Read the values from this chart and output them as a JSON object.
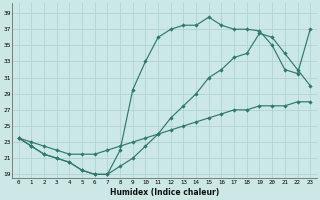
{
  "xlabel": "Humidex (Indice chaleur)",
  "bg_color": "#cce8e6",
  "grid_color": "#b0d4d0",
  "line_color": "#2d7a6a",
  "xlim": [
    -0.5,
    23.5
  ],
  "ylim": [
    18.5,
    40.2
  ],
  "xticks": [
    0,
    1,
    2,
    3,
    4,
    5,
    6,
    7,
    8,
    9,
    10,
    11,
    12,
    13,
    14,
    15,
    16,
    17,
    18,
    19,
    20,
    21,
    22,
    23
  ],
  "yticks": [
    19,
    21,
    23,
    25,
    27,
    29,
    31,
    33,
    35,
    37,
    39
  ],
  "line1_x": [
    0,
    1,
    2,
    3,
    4,
    5,
    6,
    7,
    8,
    9,
    10,
    11,
    12,
    13,
    14,
    15,
    16,
    17,
    18,
    19,
    20,
    21,
    22,
    23
  ],
  "line1_y": [
    23.5,
    23.0,
    22.5,
    22.0,
    21.5,
    21.5,
    21.5,
    22.0,
    22.5,
    23.0,
    23.5,
    24.0,
    24.5,
    25.0,
    25.5,
    26.0,
    26.5,
    27.0,
    27.0,
    27.5,
    27.5,
    27.5,
    28.0,
    28.0
  ],
  "line2_x": [
    0,
    1,
    2,
    3,
    4,
    5,
    6,
    7,
    8,
    9,
    10,
    11,
    12,
    13,
    14,
    15,
    16,
    17,
    18,
    19,
    20,
    21,
    22,
    23
  ],
  "line2_y": [
    23.5,
    22.5,
    21.5,
    21.0,
    20.5,
    19.5,
    19.0,
    19.0,
    20.0,
    21.0,
    22.5,
    24.0,
    26.0,
    27.5,
    29.0,
    31.0,
    32.0,
    33.5,
    34.0,
    36.5,
    36.0,
    34.0,
    32.0,
    30.0
  ],
  "line3_x": [
    0,
    1,
    2,
    3,
    4,
    5,
    6,
    7,
    8,
    9,
    10,
    11,
    12,
    13,
    14,
    15,
    16,
    17,
    18,
    19,
    20,
    21,
    22,
    23
  ],
  "line3_y": [
    23.5,
    22.5,
    21.5,
    21.0,
    20.5,
    19.5,
    19.0,
    19.0,
    22.0,
    29.5,
    33.0,
    36.0,
    37.0,
    37.5,
    37.5,
    38.5,
    37.5,
    37.0,
    37.0,
    36.8,
    35.0,
    32.0,
    31.5,
    37.0
  ]
}
